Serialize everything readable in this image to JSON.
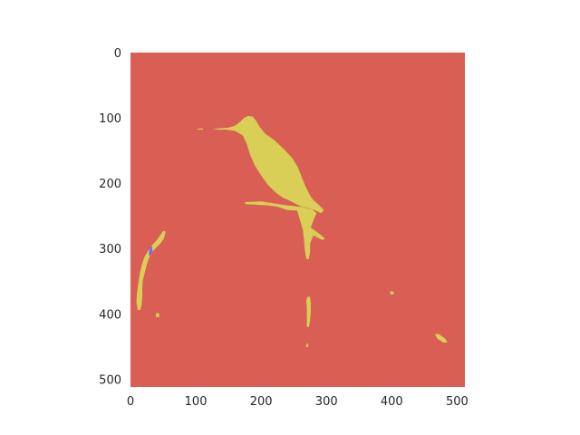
{
  "chart_data": {
    "type": "heatmap",
    "title": "",
    "xlabel": "",
    "ylabel": "",
    "xlim": [
      0,
      512
    ],
    "ylim": [
      512,
      0
    ],
    "grid": false,
    "x_ticks": [
      0,
      100,
      200,
      300,
      400,
      500
    ],
    "y_ticks": [
      0,
      100,
      200,
      300,
      400,
      500
    ],
    "x_tick_labels": [
      "0",
      "100",
      "200",
      "300",
      "400",
      "500"
    ],
    "y_tick_labels": [
      "0",
      "100",
      "200",
      "300",
      "400",
      "500"
    ],
    "classes": [
      {
        "name": "background",
        "color": "#d95f54"
      },
      {
        "name": "object",
        "color": "#d9cf57"
      },
      {
        "name": "minor",
        "color": "#7b6fd0"
      }
    ],
    "regions": [
      {
        "name": "bird",
        "class": "object",
        "points": [
          [
            125,
            117
          ],
          [
            135,
            116
          ],
          [
            150,
            115
          ],
          [
            160,
            112
          ],
          [
            168,
            106
          ],
          [
            174,
            100
          ],
          [
            180,
            97
          ],
          [
            187,
            98
          ],
          [
            192,
            104
          ],
          [
            198,
            114
          ],
          [
            206,
            124
          ],
          [
            220,
            134
          ],
          [
            235,
            148
          ],
          [
            248,
            162
          ],
          [
            256,
            175
          ],
          [
            262,
            190
          ],
          [
            268,
            205
          ],
          [
            275,
            219
          ],
          [
            280,
            226
          ],
          [
            288,
            233
          ],
          [
            296,
            241
          ],
          [
            292,
            246
          ],
          [
            282,
            241
          ],
          [
            272,
            238
          ],
          [
            262,
            236
          ],
          [
            252,
            231
          ],
          [
            242,
            226
          ],
          [
            233,
            222
          ],
          [
            222,
            214
          ],
          [
            210,
            202
          ],
          [
            200,
            188
          ],
          [
            190,
            172
          ],
          [
            183,
            156
          ],
          [
            178,
            140
          ],
          [
            172,
            127
          ],
          [
            160,
            120
          ],
          [
            147,
            118
          ],
          [
            135,
            118
          ]
        ]
      },
      {
        "name": "perch-branch",
        "class": "object",
        "points": [
          [
            175,
            229
          ],
          [
            200,
            228
          ],
          [
            220,
            231
          ],
          [
            240,
            234
          ],
          [
            260,
            236
          ],
          [
            278,
            240
          ],
          [
            285,
            246
          ],
          [
            282,
            252
          ],
          [
            276,
            268
          ],
          [
            290,
            278
          ],
          [
            298,
            285
          ],
          [
            293,
            287
          ],
          [
            280,
            280
          ],
          [
            275,
            292
          ],
          [
            275,
            305
          ],
          [
            273,
            316
          ],
          [
            269,
            316
          ],
          [
            267,
            303
          ],
          [
            266,
            290
          ],
          [
            264,
            272
          ],
          [
            260,
            258
          ],
          [
            257,
            248
          ],
          [
            255,
            242
          ],
          [
            240,
            241
          ],
          [
            225,
            236
          ],
          [
            210,
            234
          ],
          [
            192,
            233
          ],
          [
            176,
            232
          ]
        ]
      },
      {
        "name": "left-stem",
        "class": "object",
        "points": [
          [
            50,
            273
          ],
          [
            54,
            274
          ],
          [
            51,
            285
          ],
          [
            46,
            292
          ],
          [
            38,
            300
          ],
          [
            33,
            306
          ],
          [
            28,
            315
          ],
          [
            25,
            325
          ],
          [
            22,
            336
          ],
          [
            19,
            348
          ],
          [
            18,
            360
          ],
          [
            18,
            373
          ],
          [
            17,
            386
          ],
          [
            15,
            394
          ],
          [
            11,
            394
          ],
          [
            9,
            382
          ],
          [
            10,
            368
          ],
          [
            12,
            354
          ],
          [
            14,
            340
          ],
          [
            17,
            326
          ],
          [
            21,
            314
          ],
          [
            27,
            303
          ],
          [
            34,
            294
          ],
          [
            42,
            285
          ]
        ]
      },
      {
        "name": "left-fragment",
        "class": "object",
        "points": [
          [
            39,
            399
          ],
          [
            44,
            399
          ],
          [
            44,
            405
          ],
          [
            39,
            405
          ]
        ]
      },
      {
        "name": "lower-stem",
        "class": "object",
        "points": [
          [
            271,
            374
          ],
          [
            275,
            374
          ],
          [
            276,
            385
          ],
          [
            276,
            398
          ],
          [
            275,
            410
          ],
          [
            273,
            420
          ],
          [
            270,
            420
          ],
          [
            270,
            405
          ],
          [
            270,
            390
          ],
          [
            269,
            380
          ]
        ]
      },
      {
        "name": "lower-stem-tip",
        "class": "object",
        "points": [
          [
            269,
            446
          ],
          [
            272,
            446
          ],
          [
            272,
            451
          ],
          [
            269,
            451
          ]
        ]
      },
      {
        "name": "right-spot",
        "class": "object",
        "points": [
          [
            397,
            366
          ],
          [
            401,
            365
          ],
          [
            404,
            369
          ],
          [
            399,
            371
          ]
        ]
      },
      {
        "name": "right-twig",
        "class": "object",
        "points": [
          [
            466,
            431
          ],
          [
            472,
            431
          ],
          [
            482,
            438
          ],
          [
            485,
            444
          ],
          [
            479,
            444
          ],
          [
            470,
            438
          ]
        ]
      },
      {
        "name": "beak-tip",
        "class": "object",
        "points": [
          [
            102,
            117
          ],
          [
            111,
            116
          ],
          [
            111,
            118
          ],
          [
            102,
            118
          ]
        ]
      },
      {
        "name": "blue-mark",
        "class": "minor",
        "points": [
          [
            29,
            297
          ],
          [
            33,
            297
          ],
          [
            34,
            306
          ],
          [
            31,
            311
          ],
          [
            28,
            310
          ]
        ]
      }
    ]
  }
}
